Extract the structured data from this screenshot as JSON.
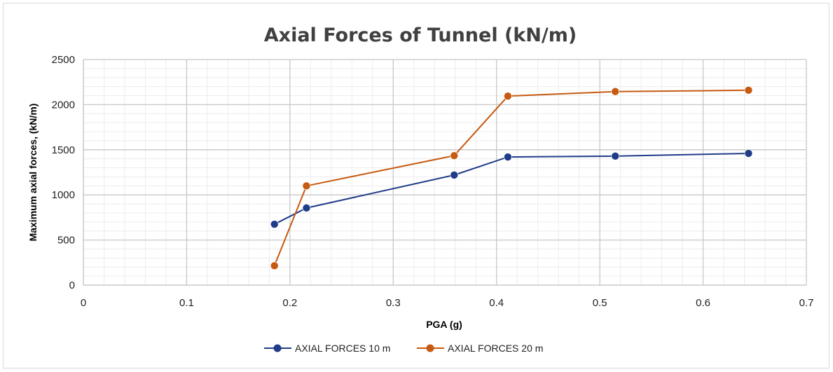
{
  "chart_data": {
    "type": "line",
    "title": "Axial Forces of Tunnel (kN/m)",
    "xlabel": "PGA (g)",
    "ylabel": "Maximum axial forces, (kN/m)",
    "xlim": [
      0,
      0.7
    ],
    "ylim": [
      0,
      2500
    ],
    "x_ticks": [
      "0",
      "0.1",
      "0.2",
      "0.3",
      "0.4",
      "0.5",
      "0.6",
      "0.7"
    ],
    "y_ticks": [
      "0",
      "500",
      "1000",
      "1500",
      "2000",
      "2500"
    ],
    "grid": true,
    "legend_position": "bottom",
    "series": [
      {
        "name": "AXIAL FORCES 10 m",
        "color": "#1f3c88",
        "x": [
          0.185,
          0.216,
          0.359,
          0.411,
          0.515,
          0.644
        ],
        "y": [
          675,
          855,
          1220,
          1420,
          1430,
          1460
        ]
      },
      {
        "name": "AXIAL FORCES 20 m",
        "color": "#c65a11",
        "x": [
          0.185,
          0.216,
          0.359,
          0.411,
          0.515,
          0.644
        ],
        "y": [
          215,
          1100,
          1435,
          2095,
          2145,
          2160
        ]
      }
    ]
  }
}
